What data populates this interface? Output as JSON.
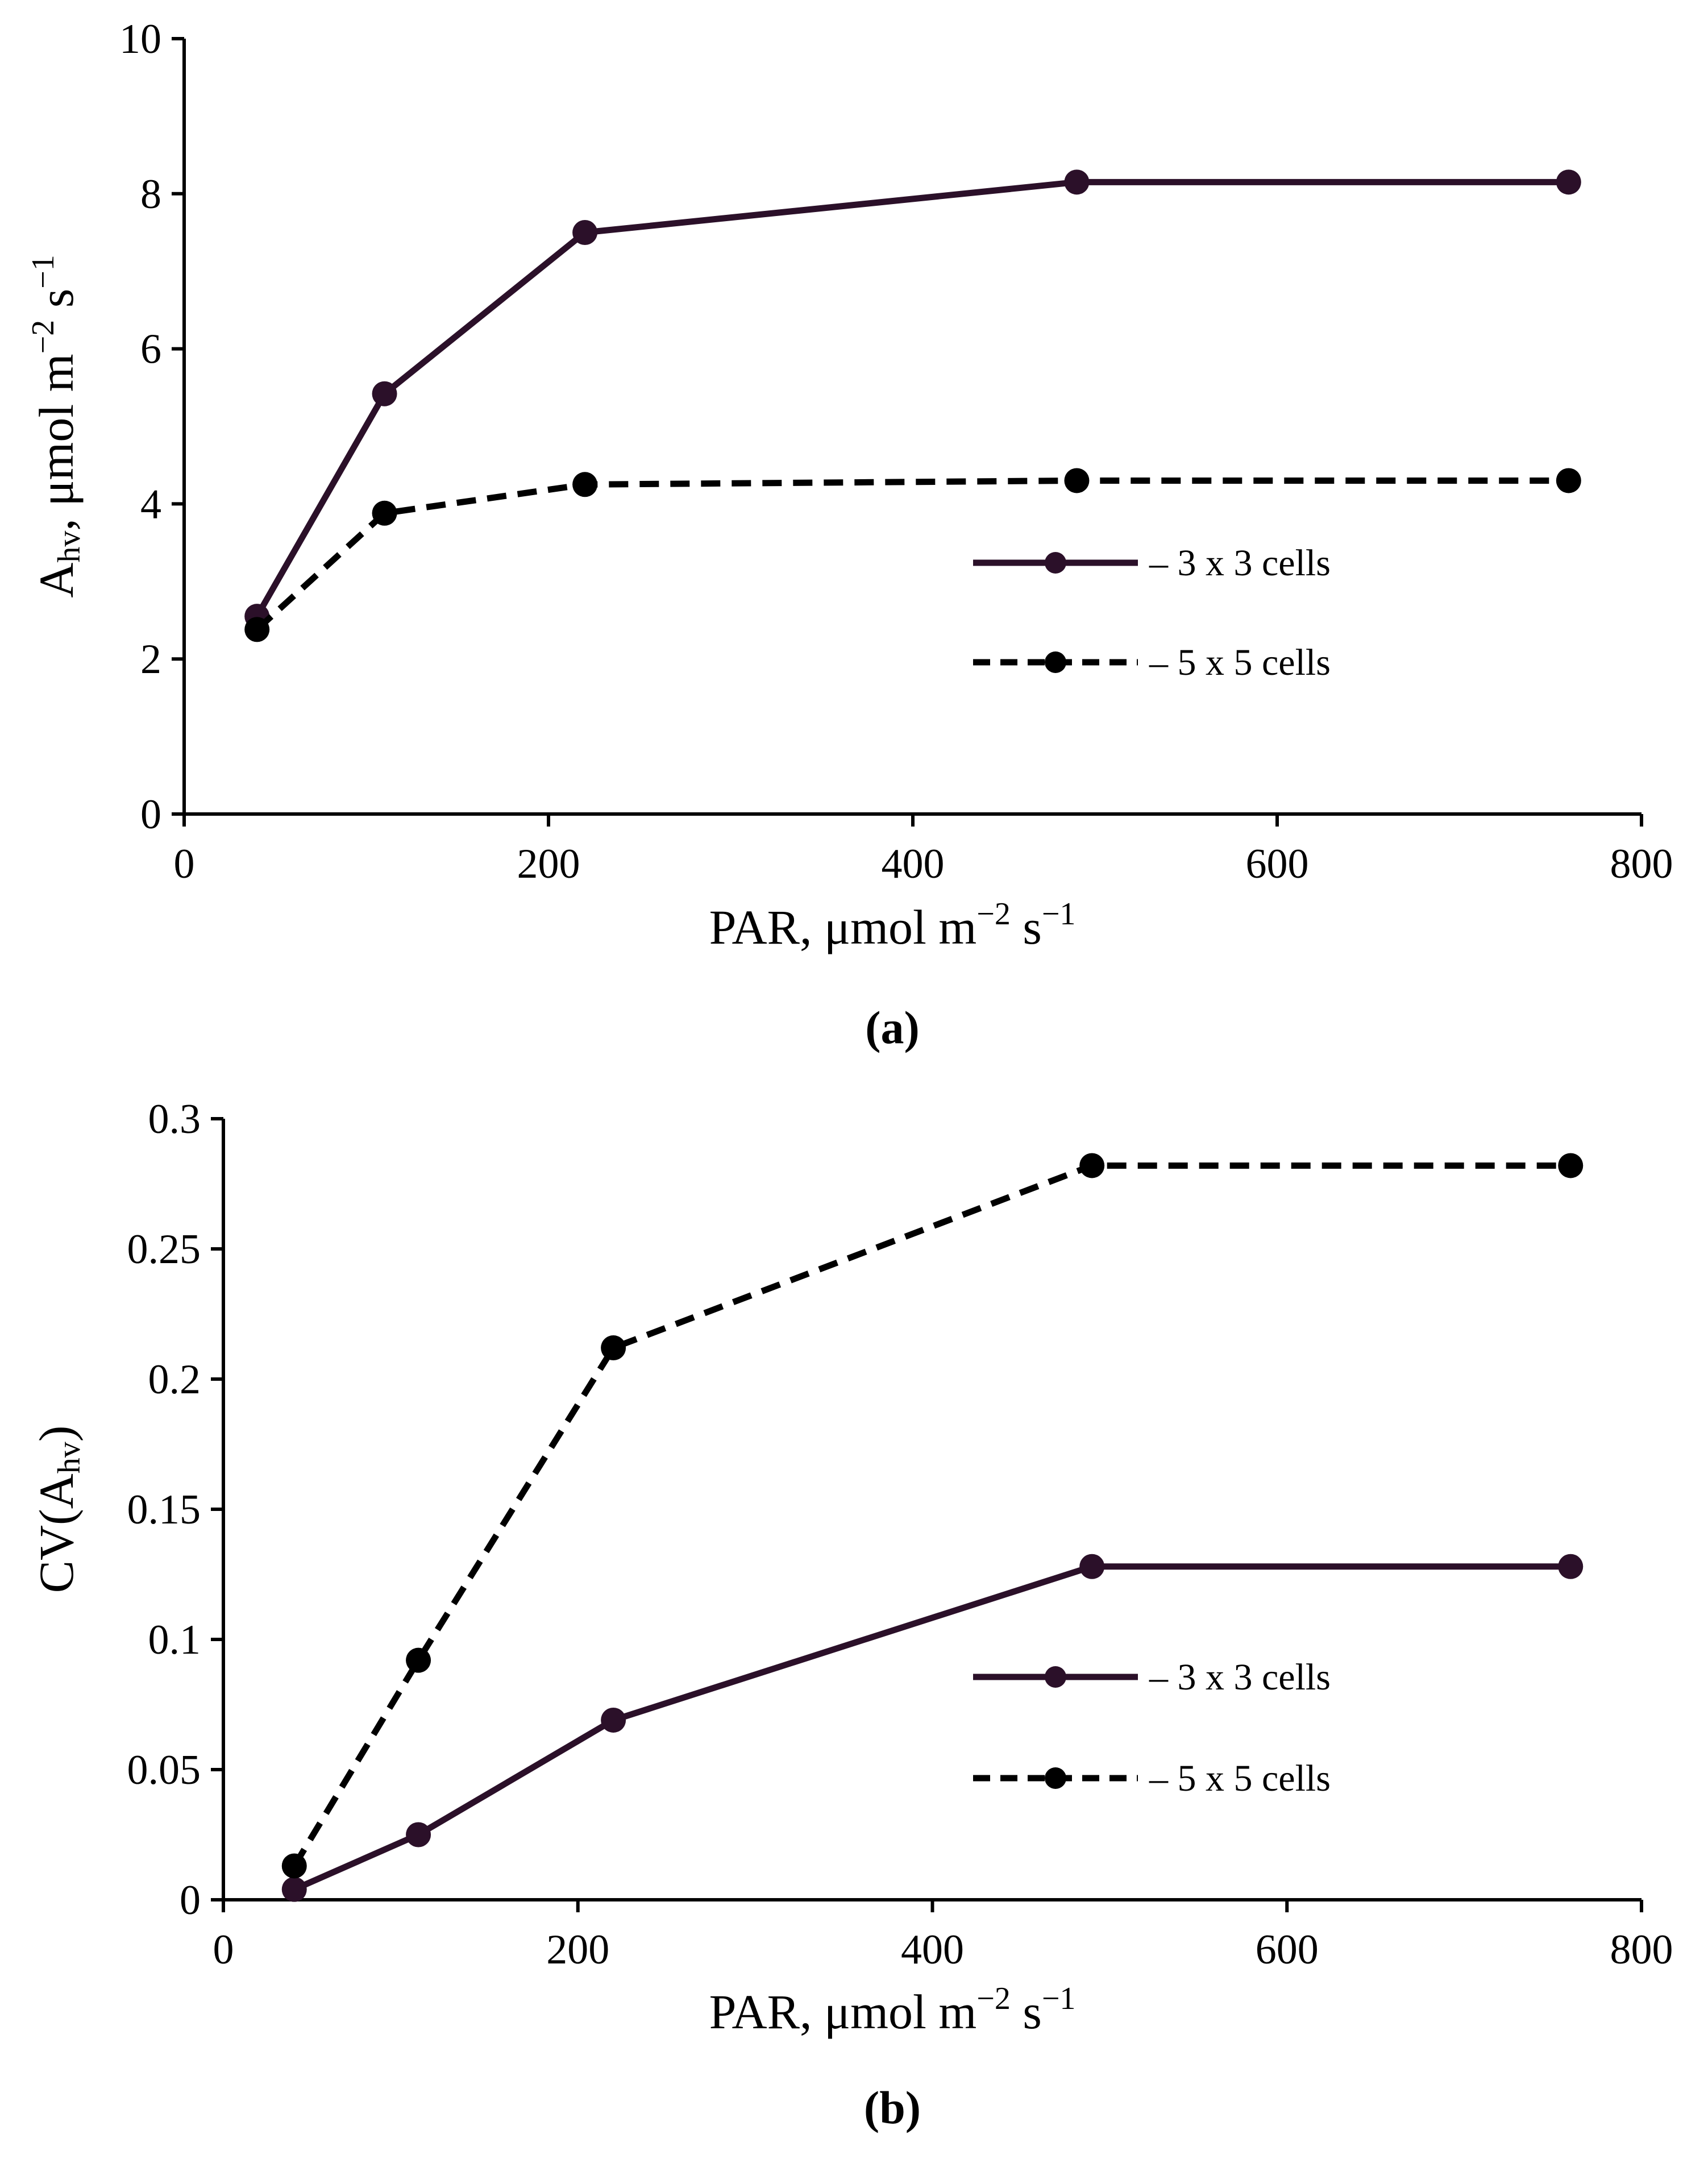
{
  "chart_data": [
    {
      "type": "line",
      "panel_label": "(a)",
      "x": [
        40,
        110,
        220,
        490,
        760
      ],
      "series": [
        {
          "name": "3 x 3 cells",
          "legend_text": "– 3 x 3 cells",
          "style": "solid",
          "color": "#2b1029",
          "values": [
            2.55,
            5.42,
            7.5,
            8.15,
            8.15
          ]
        },
        {
          "name": "5 x 5 cells",
          "legend_text": "– 5 x 5 cells",
          "style": "dashed",
          "color": "#000000",
          "values": [
            2.38,
            3.88,
            4.25,
            4.3,
            4.3
          ]
        }
      ],
      "xlabel": {
        "base": "PAR, μmol m",
        "sup1": "−2",
        "mid": " s",
        "sup2": "−1"
      },
      "ylabel": {
        "A": "A",
        "sub": "hv",
        "rest": ", μmol m",
        "sup1": "−2",
        "mid": " s",
        "sup2": "−1"
      },
      "xlim": [
        0,
        800
      ],
      "ylim": [
        0,
        10
      ],
      "xticks": [
        0,
        200,
        400,
        600,
        800
      ],
      "xtick_labels": [
        "0",
        "200",
        "400",
        "600",
        "800"
      ],
      "yticks": [
        0,
        2,
        4,
        6,
        8,
        10
      ],
      "ytick_labels": [
        "0",
        "2",
        "4",
        "6",
        "8",
        "10"
      ],
      "grid": false,
      "legend_position": "middle-right"
    },
    {
      "type": "line",
      "panel_label": "(b)",
      "x": [
        40,
        110,
        220,
        490,
        760
      ],
      "series": [
        {
          "name": "3 x 3 cells",
          "legend_text": "– 3 x 3 cells",
          "style": "solid",
          "color": "#2b1029",
          "values": [
            0.004,
            0.025,
            0.069,
            0.128,
            0.128
          ]
        },
        {
          "name": "5 x 5 cells",
          "legend_text": "– 5 x 5 cells",
          "style": "dashed",
          "color": "#000000",
          "values": [
            0.013,
            0.092,
            0.212,
            0.282,
            0.282
          ]
        }
      ],
      "xlabel": {
        "base": "PAR, μmol m",
        "sup1": "−2",
        "mid": " s",
        "sup2": "−1"
      },
      "ylabel": {
        "A": "CV(A",
        "sub": "hv",
        "rest": ")"
      },
      "xlim": [
        0,
        800
      ],
      "ylim": [
        0,
        0.3
      ],
      "xticks": [
        0,
        200,
        400,
        600,
        800
      ],
      "xtick_labels": [
        "0",
        "200",
        "400",
        "600",
        "800"
      ],
      "yticks": [
        0,
        0.05,
        0.1,
        0.15,
        0.2,
        0.25,
        0.3
      ],
      "ytick_labels": [
        "0",
        "0.05",
        "0.1",
        "0.15",
        "0.2",
        "0.25",
        "0.3"
      ],
      "grid": false,
      "legend_position": "lower-right"
    }
  ]
}
